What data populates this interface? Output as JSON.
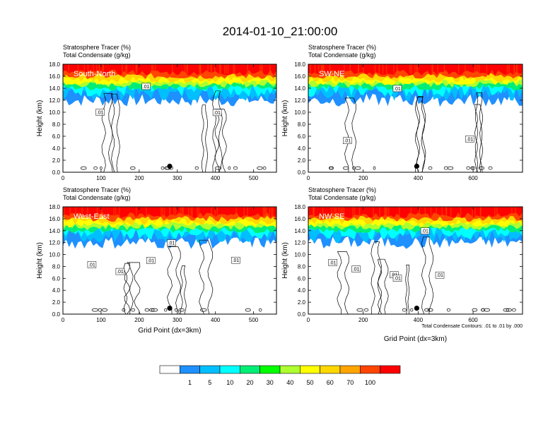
{
  "figure": {
    "title": "2014-01-10_21:00:00",
    "contour_note": "Total Condensate Contours: .01 to .01 by .000"
  },
  "colorbar": {
    "colors": [
      "#ffffff",
      "#1e90ff",
      "#00bfff",
      "#00ffff",
      "#00ee76",
      "#00ff00",
      "#adff2f",
      "#ffff00",
      "#ffd700",
      "#ffa500",
      "#ff4500",
      "#ff0000"
    ],
    "labels": [
      "1",
      "5",
      "10",
      "20",
      "30",
      "40",
      "50",
      "60",
      "70",
      "100"
    ]
  },
  "chart_data": [
    {
      "type": "heatmap",
      "panel_label": "South-North",
      "top_left_label": "Stratosphere Tracer   (%)",
      "top_left_label2": "Total Condensate   (g/kg)",
      "ylabel": "Height (km)",
      "xlabel": "",
      "xlim": [
        0,
        560
      ],
      "ylim": [
        0,
        18
      ],
      "x_ticks": [
        "0",
        "100",
        "200",
        "300",
        "400",
        "500"
      ],
      "y_ticks": [
        "0.0",
        "2.0",
        "4.0",
        "6.0",
        "8.0",
        "10.0",
        "12.0",
        "14.0",
        "16.0",
        "18.0"
      ],
      "contour_labels": [
        ".01",
        ".01",
        ".01"
      ],
      "marker_x": 280,
      "marker_y": 1.0
    },
    {
      "type": "heatmap",
      "panel_label": "SW-NE",
      "top_left_label": "Stratosphere Tracer   (%)",
      "top_left_label2": "Total Condensate   (g/kg)",
      "ylabel": "Height (km)",
      "xlabel": "",
      "xlim": [
        0,
        780
      ],
      "ylim": [
        0,
        18
      ],
      "x_ticks": [
        "0",
        "200",
        "400",
        "600"
      ],
      "y_ticks": [
        "0.0",
        "2.0",
        "4.0",
        "6.0",
        "8.0",
        "10.0",
        "12.0",
        "14.0",
        "16.0",
        "18.0"
      ],
      "contour_labels": [
        ".01",
        ".01",
        ".01"
      ],
      "marker_x": 395,
      "marker_y": 1.0
    },
    {
      "type": "heatmap",
      "panel_label": "West-East",
      "top_left_label": "Stratosphere Tracer   (%)",
      "top_left_label2": "Total Condensate   (g/kg)",
      "ylabel": "Height (km)",
      "xlabel": "Grid Point (dx=3km)",
      "xlim": [
        0,
        560
      ],
      "ylim": [
        0,
        18
      ],
      "x_ticks": [
        "0",
        "100",
        "200",
        "300",
        "400",
        "500"
      ],
      "y_ticks": [
        "0.0",
        "2.0",
        "4.0",
        "6.0",
        "8.0",
        "10.0",
        "12.0",
        "14.0",
        "16.0",
        "18.0"
      ],
      "contour_labels": [
        ".01",
        ".01",
        ".01",
        ".01",
        ".01"
      ],
      "marker_x": 280,
      "marker_y": 1.0
    },
    {
      "type": "heatmap",
      "panel_label": "NW-SE",
      "top_left_label": "Stratosphere Tracer   (%)",
      "top_left_label2": "Total Condensate   (g/kg)",
      "ylabel": "Height (km)",
      "xlabel": "Grid Point (dx=3km)",
      "xlim": [
        0,
        780
      ],
      "ylim": [
        0,
        18
      ],
      "x_ticks": [
        "0",
        "200",
        "400",
        "600"
      ],
      "y_ticks": [
        "0.0",
        "2.0",
        "4.0",
        "6.0",
        "8.0",
        "10.0",
        "12.0",
        "14.0",
        "16.0",
        "18.0"
      ],
      "contour_labels": [
        ".01",
        ".01",
        ".01",
        ".01",
        ".01",
        ".01"
      ],
      "marker_x": 395,
      "marker_y": 1.0
    }
  ]
}
